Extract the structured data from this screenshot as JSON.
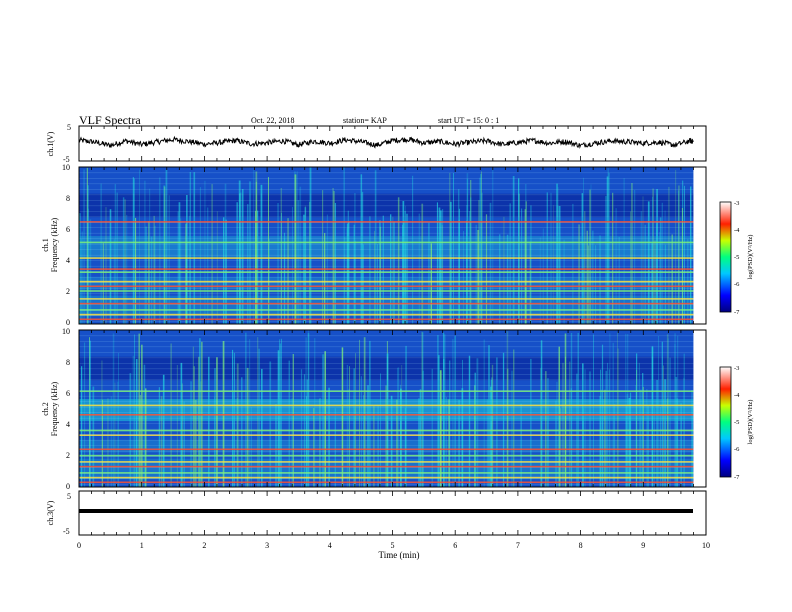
{
  "header": {
    "title": "VLF Spectra",
    "date": "Oct. 22, 2018",
    "station": "station= KAP",
    "start": "start UT =  15: 0  : 1"
  },
  "chart_data": [
    {
      "type": "line",
      "panel": "ch1-waveform",
      "ylabel": "ch.1(V)",
      "ylim": [
        -5,
        5
      ],
      "yticks": [
        "5",
        "-5"
      ],
      "x": [
        0,
        0.25,
        0.5,
        0.75,
        1,
        1.25,
        1.5,
        1.75,
        2,
        2.25,
        2.5,
        2.75,
        3,
        3.25,
        3.5,
        3.75,
        4,
        4.25,
        4.5,
        4.75,
        5,
        5.25,
        5.5,
        5.75,
        6,
        6.25,
        6.5,
        6.75,
        7,
        7.25,
        7.5,
        7.75,
        8,
        8.25,
        8.5,
        8.75,
        9,
        9.25,
        9.5,
        9.75,
        9.8
      ],
      "y": [
        1.0,
        0.4,
        -0.6,
        0.8,
        -0.3,
        0.5,
        1.2,
        0.6,
        -0.2,
        0.3,
        0.9,
        -0.1,
        0.2,
        0.8,
        -0.4,
        0.7,
        0.1,
        1.1,
        0.5,
        -0.5,
        0.9,
        1.3,
        0.2,
        0.6,
        -0.2,
        0.4,
        0.8,
        -0.3,
        0.3,
        0.9,
        0.1,
        0.6,
        -0.6,
        0.2,
        0.8,
        0.5,
        0.1,
        0.4,
        -0.5,
        0.8,
        0.5
      ],
      "color": "#000000"
    },
    {
      "type": "heatmap",
      "panel": "ch1-spectrogram",
      "ylabel": "ch.1\nFrequency (kHz)",
      "ylim": [
        0,
        10
      ],
      "yticks": [
        "0",
        "2",
        "4",
        "6",
        "8",
        "10"
      ],
      "colorbar": {
        "label": "log(PSD)(V²/Hz)",
        "range": [
          -7,
          -3
        ],
        "ticks": [
          "-3",
          "-4",
          "-5",
          "-6",
          "-7"
        ]
      },
      "bands_khz": [
        0.3,
        0.6,
        0.9,
        1.3,
        1.6,
        2.1,
        2.4,
        2.7,
        3.3,
        3.5,
        4.2,
        5.2,
        6.5
      ]
    },
    {
      "type": "heatmap",
      "panel": "ch2-spectrogram",
      "ylabel": "ch.2\nFrequency (kHz)",
      "ylim": [
        0,
        10
      ],
      "yticks": [
        "0",
        "2",
        "4",
        "6",
        "8",
        "10"
      ],
      "colorbar": {
        "label": "log(PSD)(V²/Hz)",
        "range": [
          -7,
          -3
        ],
        "ticks": [
          "-3",
          "-4",
          "-5",
          "-6",
          "-7"
        ]
      },
      "bands_khz": [
        0.3,
        0.6,
        0.9,
        1.3,
        1.6,
        2.0,
        2.4,
        3.3,
        3.6,
        4.6,
        5.2,
        6.1
      ]
    },
    {
      "type": "line",
      "panel": "ch3-waveform",
      "ylabel": "ch.3(V)",
      "ylim": [
        -5,
        5
      ],
      "yticks": [
        "5",
        "-5"
      ],
      "x": [
        0,
        9.8
      ],
      "y": [
        0,
        0
      ],
      "color": "#000000"
    }
  ],
  "xaxis": {
    "label": "Time (min)",
    "range": [
      0,
      10
    ],
    "ticks": [
      "0",
      "1",
      "2",
      "3",
      "4",
      "5",
      "6",
      "7",
      "8",
      "9",
      "10"
    ]
  },
  "colors": {
    "spectro_bg": "#1650c8",
    "spectro_dark": "#0a2aa0",
    "spectro_mid": "#1fc8dc",
    "spectro_hi": "#7cf07a",
    "line": "#000000"
  }
}
